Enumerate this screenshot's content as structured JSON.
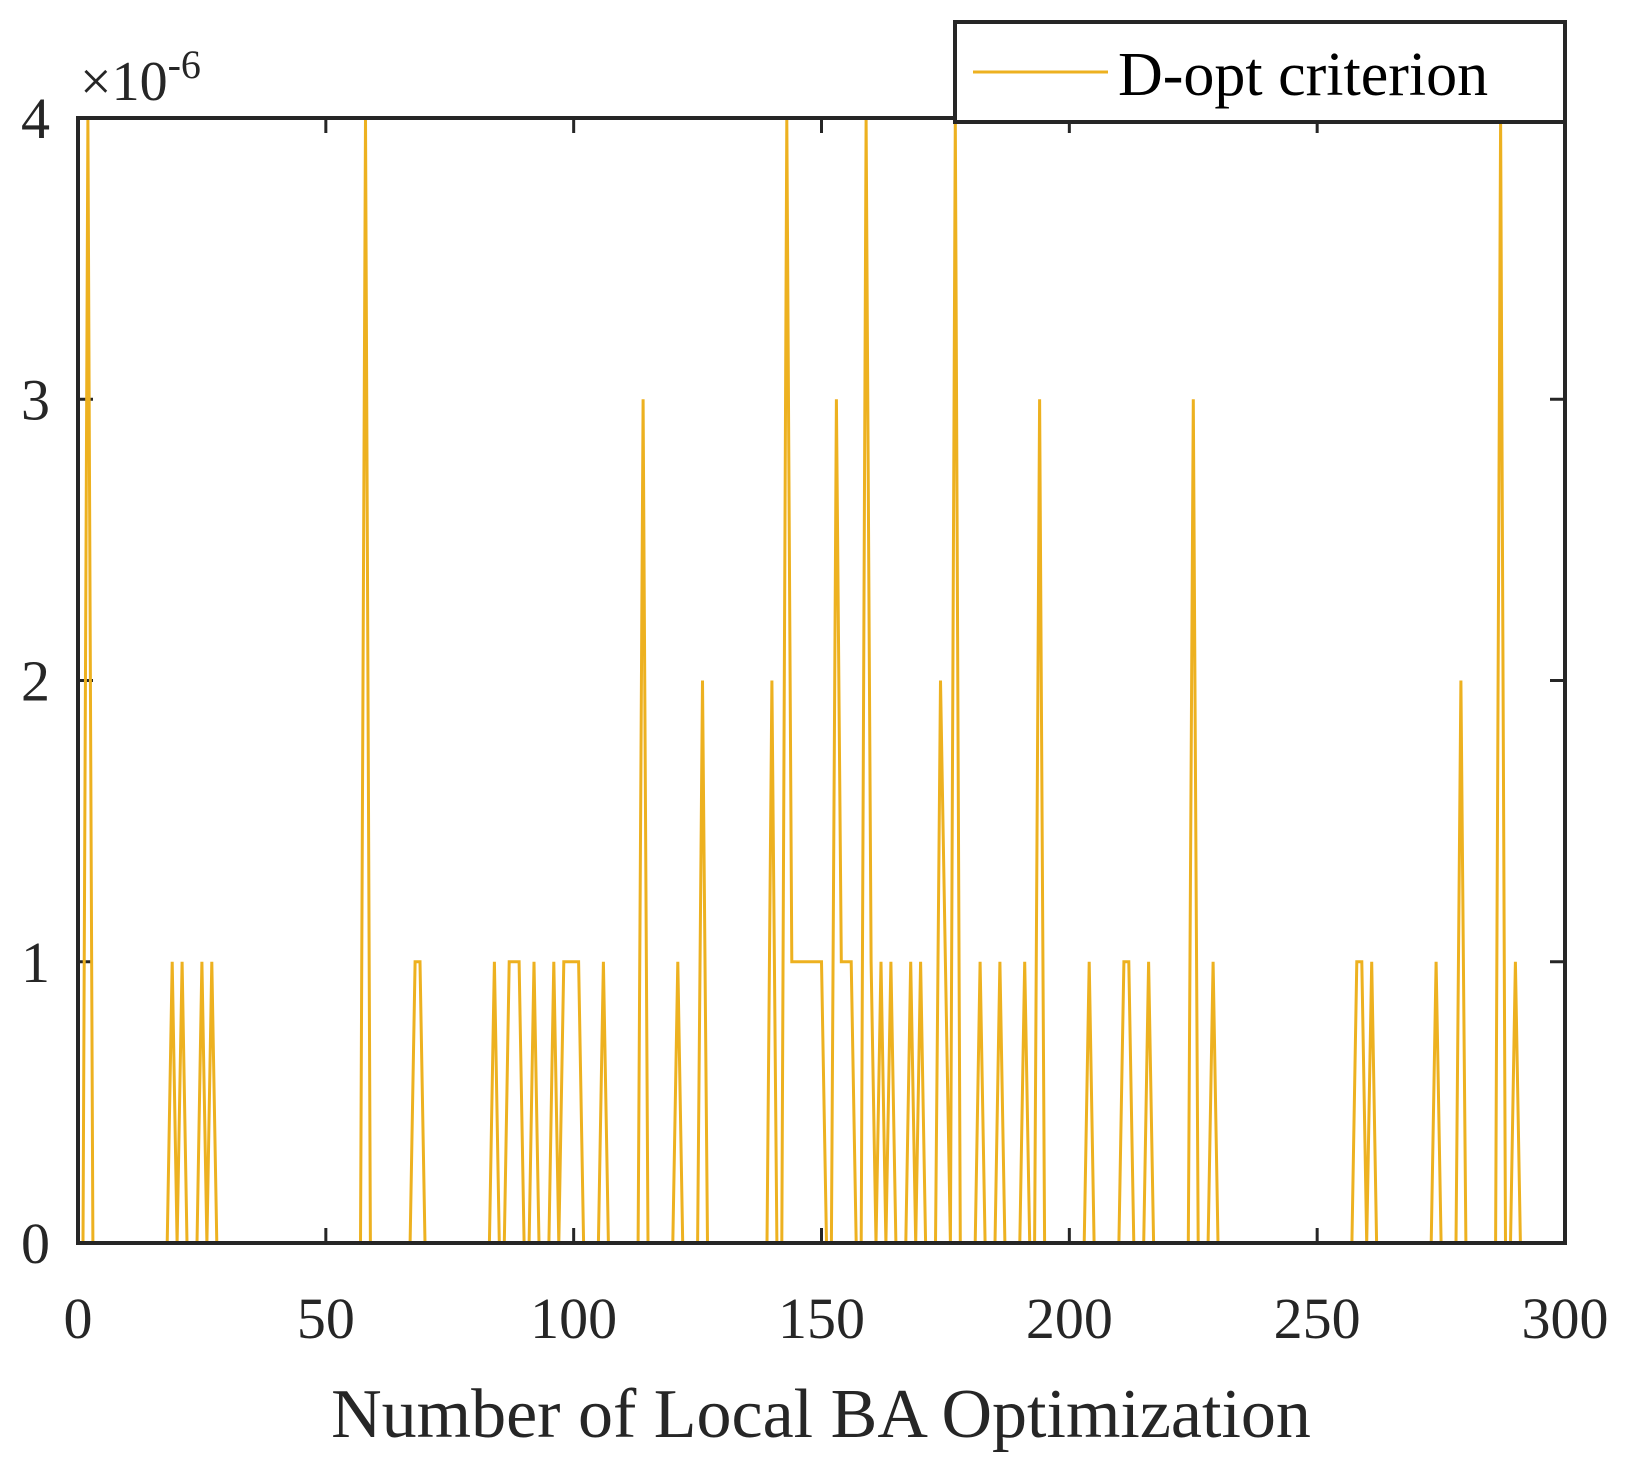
{
  "chart_data": {
    "type": "line",
    "title": "",
    "xlabel": "Number of Local BA Optimization",
    "ylabel": "",
    "xlim": [
      0,
      300
    ],
    "ylim": [
      0,
      4
    ],
    "y_exponent": {
      "base": "10",
      "power": "-6",
      "times": "×"
    },
    "grid": false,
    "legend_position": "top-right",
    "x_ticks": [
      0,
      50,
      100,
      150,
      200,
      250,
      300
    ],
    "y_ticks": [
      0,
      1,
      2,
      3,
      4
    ],
    "x_tick_labels": [
      "0",
      "50",
      "100",
      "150",
      "200",
      "250",
      "300"
    ],
    "y_tick_labels": [
      "0",
      "1",
      "2",
      "3",
      "4"
    ],
    "series": [
      {
        "name": "D-opt criterion",
        "color": "#EDB120",
        "points": [
          [
            0,
            0
          ],
          [
            1,
            0
          ],
          [
            2,
            4
          ],
          [
            3,
            0
          ],
          [
            4,
            0
          ],
          [
            17,
            0
          ],
          [
            18,
            0
          ],
          [
            19,
            1
          ],
          [
            20,
            0
          ],
          [
            21,
            1
          ],
          [
            22,
            0
          ],
          [
            24,
            0
          ],
          [
            25,
            1
          ],
          [
            26,
            0
          ],
          [
            27,
            1
          ],
          [
            28,
            0
          ],
          [
            30,
            0
          ],
          [
            56,
            0
          ],
          [
            57,
            0
          ],
          [
            58,
            4
          ],
          [
            59,
            0
          ],
          [
            67,
            0
          ],
          [
            68,
            1
          ],
          [
            69,
            1
          ],
          [
            70,
            0
          ],
          [
            82,
            0
          ],
          [
            83,
            0
          ],
          [
            84,
            1
          ],
          [
            85,
            0
          ],
          [
            86,
            0
          ],
          [
            87,
            1
          ],
          [
            89,
            1
          ],
          [
            90,
            0
          ],
          [
            91,
            0
          ],
          [
            92,
            1
          ],
          [
            93,
            0
          ],
          [
            95,
            0
          ],
          [
            96,
            1
          ],
          [
            97,
            0
          ],
          [
            98,
            1
          ],
          [
            101,
            1
          ],
          [
            102,
            0
          ],
          [
            105,
            0
          ],
          [
            106,
            1
          ],
          [
            107,
            0
          ],
          [
            113,
            0
          ],
          [
            114,
            3
          ],
          [
            115,
            0
          ],
          [
            120,
            0
          ],
          [
            121,
            1
          ],
          [
            122,
            0
          ],
          [
            125,
            0
          ],
          [
            126,
            2
          ],
          [
            127,
            0
          ],
          [
            139,
            0
          ],
          [
            140,
            2
          ],
          [
            141,
            0
          ],
          [
            142,
            0
          ],
          [
            143,
            4
          ],
          [
            144,
            1
          ],
          [
            150,
            1
          ],
          [
            151,
            0
          ],
          [
            152,
            0
          ],
          [
            153,
            3
          ],
          [
            154,
            1
          ],
          [
            156,
            1
          ],
          [
            157,
            0
          ],
          [
            158,
            0
          ],
          [
            159,
            4
          ],
          [
            160,
            1
          ],
          [
            161,
            0
          ],
          [
            162,
            1
          ],
          [
            163,
            0
          ],
          [
            164,
            1
          ],
          [
            165,
            0
          ],
          [
            167,
            0
          ],
          [
            168,
            1
          ],
          [
            169,
            0
          ],
          [
            170,
            1
          ],
          [
            171,
            0
          ],
          [
            173,
            0
          ],
          [
            174,
            2
          ],
          [
            175,
            1
          ],
          [
            176,
            0
          ],
          [
            177,
            4
          ],
          [
            178,
            0
          ],
          [
            181,
            0
          ],
          [
            182,
            1
          ],
          [
            183,
            0
          ],
          [
            185,
            0
          ],
          [
            186,
            1
          ],
          [
            187,
            0
          ],
          [
            190,
            0
          ],
          [
            191,
            1
          ],
          [
            192,
            0
          ],
          [
            193,
            0
          ],
          [
            194,
            3
          ],
          [
            195,
            0
          ],
          [
            203,
            0
          ],
          [
            204,
            1
          ],
          [
            205,
            0
          ],
          [
            210,
            0
          ],
          [
            211,
            1
          ],
          [
            212,
            1
          ],
          [
            213,
            0
          ],
          [
            215,
            0
          ],
          [
            216,
            1
          ],
          [
            217,
            0
          ],
          [
            223,
            0
          ],
          [
            224,
            0
          ],
          [
            225,
            3
          ],
          [
            226,
            0
          ],
          [
            228,
            0
          ],
          [
            229,
            1
          ],
          [
            230,
            0
          ],
          [
            257,
            0
          ],
          [
            258,
            1
          ],
          [
            259,
            1
          ],
          [
            260,
            0
          ],
          [
            261,
            1
          ],
          [
            262,
            0
          ],
          [
            273,
            0
          ],
          [
            274,
            1
          ],
          [
            275,
            0
          ],
          [
            277,
            0
          ],
          [
            278,
            0
          ],
          [
            279,
            2
          ],
          [
            280,
            0
          ],
          [
            285,
            0
          ],
          [
            286,
            0
          ],
          [
            287,
            4
          ],
          [
            288,
            0
          ],
          [
            289,
            0
          ],
          [
            290,
            1
          ],
          [
            291,
            0
          ]
        ]
      }
    ]
  }
}
